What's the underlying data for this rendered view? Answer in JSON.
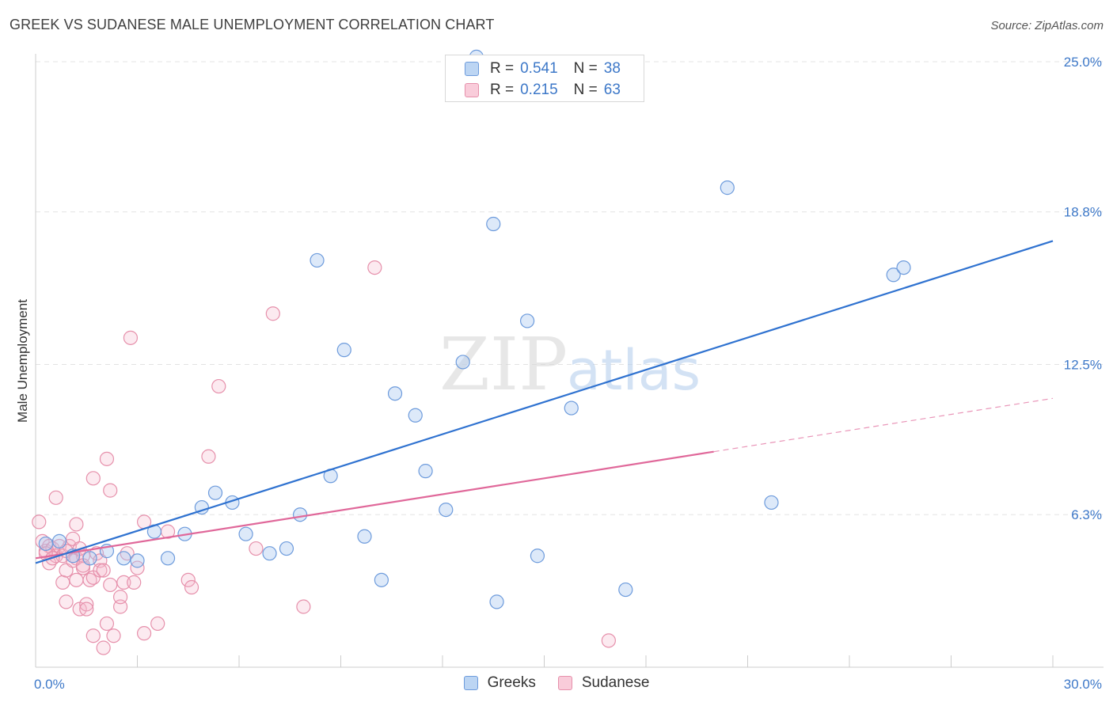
{
  "header": {
    "title": "GREEK VS SUDANESE MALE UNEMPLOYMENT CORRELATION CHART",
    "source": "Source: ZipAtlas.com"
  },
  "watermark": {
    "zip": "ZIP",
    "atlas": "atlas"
  },
  "legend_top": {
    "rows": [
      {
        "r_label": "R =",
        "r_value": "0.541",
        "n_label": "N =",
        "n_value": "38"
      },
      {
        "r_label": "R =",
        "r_value": "0.215",
        "n_label": "N =",
        "n_value": "63"
      }
    ]
  },
  "legend_bottom": {
    "items": [
      "Greeks",
      "Sudanese"
    ]
  },
  "colors": {
    "greeks_fill": "#a9c9f0",
    "greeks_stroke": "#6d9bdc",
    "greeks_line": "#2f72d0",
    "sudanese_fill": "#f6b8cc",
    "sudanese_stroke": "#e690ab",
    "sudanese_line": "#e0689a",
    "axis_label": "#3d78c8",
    "grid": "#e3e3e3"
  },
  "chart_data": {
    "type": "scatter",
    "title": "GREEK VS SUDANESE MALE UNEMPLOYMENT CORRELATION CHART",
    "xlabel": "",
    "ylabel": "Male Unemployment",
    "xlim": [
      0,
      30
    ],
    "ylim": [
      0,
      25.0
    ],
    "x_tick_labels": [
      "0.0%",
      "30.0%"
    ],
    "y_ticks": [
      6.3,
      12.5,
      18.8,
      25.0
    ],
    "y_tick_labels": [
      "6.3%",
      "12.5%",
      "18.8%",
      "25.0%"
    ],
    "series": [
      {
        "name": "Greeks",
        "R": 0.541,
        "N": 38,
        "points": [
          [
            0.3,
            5.1
          ],
          [
            0.7,
            5.2
          ],
          [
            1.1,
            4.6
          ],
          [
            1.6,
            4.5
          ],
          [
            2.1,
            4.8
          ],
          [
            2.6,
            4.5
          ],
          [
            3.0,
            4.4
          ],
          [
            3.5,
            5.6
          ],
          [
            3.9,
            4.5
          ],
          [
            4.4,
            5.5
          ],
          [
            4.9,
            6.6
          ],
          [
            5.3,
            7.2
          ],
          [
            5.8,
            6.8
          ],
          [
            6.2,
            5.5
          ],
          [
            6.9,
            4.7
          ],
          [
            7.4,
            4.9
          ],
          [
            7.8,
            6.3
          ],
          [
            8.3,
            16.8
          ],
          [
            8.7,
            7.9
          ],
          [
            9.1,
            13.1
          ],
          [
            9.7,
            5.4
          ],
          [
            10.2,
            3.6
          ],
          [
            10.6,
            11.3
          ],
          [
            11.2,
            10.4
          ],
          [
            11.5,
            8.1
          ],
          [
            12.1,
            6.5
          ],
          [
            12.6,
            12.6
          ],
          [
            13.0,
            25.2
          ],
          [
            13.5,
            18.3
          ],
          [
            13.6,
            2.7
          ],
          [
            14.5,
            14.3
          ],
          [
            14.8,
            4.6
          ],
          [
            15.8,
            10.7
          ],
          [
            17.4,
            3.2
          ],
          [
            20.4,
            19.8
          ],
          [
            21.7,
            6.8
          ],
          [
            25.3,
            16.2
          ],
          [
            25.6,
            16.5
          ]
        ],
        "trend": {
          "x": [
            0.0,
            30.0
          ],
          "y": [
            4.3,
            17.6
          ]
        }
      },
      {
        "name": "Sudanese",
        "R": 0.215,
        "N": 63,
        "points": [
          [
            0.1,
            6.0
          ],
          [
            0.2,
            5.2
          ],
          [
            0.3,
            4.8
          ],
          [
            0.4,
            5.0
          ],
          [
            0.4,
            4.3
          ],
          [
            0.5,
            4.9
          ],
          [
            0.6,
            4.6
          ],
          [
            0.6,
            7.0
          ],
          [
            0.7,
            5.0
          ],
          [
            0.8,
            4.6
          ],
          [
            0.8,
            3.5
          ],
          [
            0.9,
            2.7
          ],
          [
            0.9,
            4.0
          ],
          [
            1.0,
            5.0
          ],
          [
            1.1,
            5.3
          ],
          [
            1.2,
            4.5
          ],
          [
            1.2,
            3.6
          ],
          [
            1.2,
            5.9
          ],
          [
            1.3,
            2.4
          ],
          [
            1.3,
            4.9
          ],
          [
            1.4,
            4.1
          ],
          [
            1.4,
            4.6
          ],
          [
            1.5,
            2.6
          ],
          [
            1.5,
            2.4
          ],
          [
            1.6,
            3.6
          ],
          [
            1.7,
            3.7
          ],
          [
            1.7,
            1.3
          ],
          [
            1.7,
            7.8
          ],
          [
            1.8,
            4.7
          ],
          [
            1.9,
            4.4
          ],
          [
            1.9,
            4.0
          ],
          [
            2.0,
            4.0
          ],
          [
            2.0,
            0.8
          ],
          [
            2.1,
            1.8
          ],
          [
            2.1,
            8.6
          ],
          [
            2.2,
            3.4
          ],
          [
            2.2,
            7.3
          ],
          [
            2.3,
            1.3
          ],
          [
            2.5,
            2.5
          ],
          [
            2.5,
            2.9
          ],
          [
            2.6,
            3.5
          ],
          [
            2.7,
            4.7
          ],
          [
            2.8,
            13.6
          ],
          [
            2.9,
            3.5
          ],
          [
            3.0,
            4.1
          ],
          [
            3.2,
            1.4
          ],
          [
            3.2,
            6.0
          ],
          [
            3.6,
            1.8
          ],
          [
            3.9,
            5.6
          ],
          [
            4.5,
            3.6
          ],
          [
            4.6,
            3.3
          ],
          [
            5.1,
            8.7
          ],
          [
            5.4,
            11.6
          ],
          [
            6.5,
            4.9
          ],
          [
            7.0,
            14.6
          ],
          [
            7.9,
            2.5
          ],
          [
            10.0,
            16.5
          ],
          [
            16.9,
            1.1
          ],
          [
            0.3,
            4.7
          ],
          [
            0.5,
            4.5
          ],
          [
            0.9,
            4.8
          ],
          [
            1.1,
            4.4
          ],
          [
            1.4,
            4.2
          ]
        ],
        "trend_solid": {
          "x": [
            0.0,
            20.0
          ],
          "y": [
            4.5,
            8.9
          ]
        },
        "trend_dashed": {
          "x": [
            20.0,
            30.0
          ],
          "y": [
            8.9,
            11.1
          ]
        }
      }
    ]
  }
}
